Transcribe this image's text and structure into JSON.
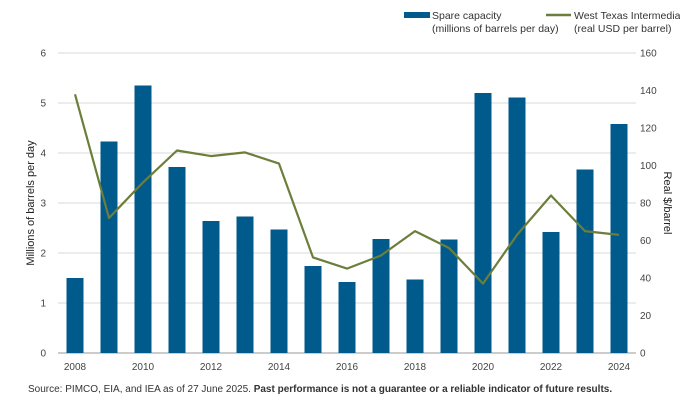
{
  "chart_data": {
    "type": "bar+line",
    "categories": [
      "2008",
      "2009",
      "2010",
      "2011",
      "2012",
      "2013",
      "2014",
      "2015",
      "2016",
      "2017",
      "2018",
      "2019",
      "2020",
      "2021",
      "2022",
      "2023",
      "2024"
    ],
    "x_tick_labels": [
      "2008",
      "2010",
      "2012",
      "2014",
      "2016",
      "2018",
      "2020",
      "2022",
      "2024"
    ],
    "series": [
      {
        "name": "Spare capacity",
        "legend_line1": "Spare capacity",
        "legend_line2": "(millions of barrels per day)",
        "type": "bar",
        "axis": "left",
        "color": "#005A8C",
        "values": [
          1.5,
          4.23,
          5.35,
          3.72,
          2.64,
          2.73,
          2.47,
          1.74,
          1.42,
          2.28,
          1.47,
          2.27,
          5.2,
          5.11,
          2.42,
          3.67,
          4.58
        ]
      },
      {
        "name": "West Texas Intermediate",
        "legend_line1": "West Texas Intermediate",
        "legend_line2": "(real USD per barrel)",
        "type": "line",
        "axis": "right",
        "color": "#6B7F3A",
        "values": [
          138,
          72,
          91,
          108,
          105,
          107,
          101,
          51,
          45,
          52,
          65,
          56,
          37,
          63,
          84,
          65,
          63
        ]
      }
    ],
    "ylabel_left": "Millions of barrels per day",
    "ylabel_right": "Real $/barrel",
    "ylim_left": [
      0,
      6
    ],
    "ylim_right": [
      0,
      160
    ],
    "yticks_left": [
      "0",
      "1",
      "2",
      "3",
      "4",
      "5",
      "6"
    ],
    "yticks_right": [
      "0",
      "20",
      "40",
      "60",
      "80",
      "100",
      "120",
      "140",
      "160"
    ],
    "grid": true,
    "legend_position": "top-right"
  },
  "source": {
    "prefix": "Source: PIMCO, EIA, and IEA as of 27 June 2025.",
    "bold": "Past performance is not a guarantee or a reliable indicator of future results."
  }
}
